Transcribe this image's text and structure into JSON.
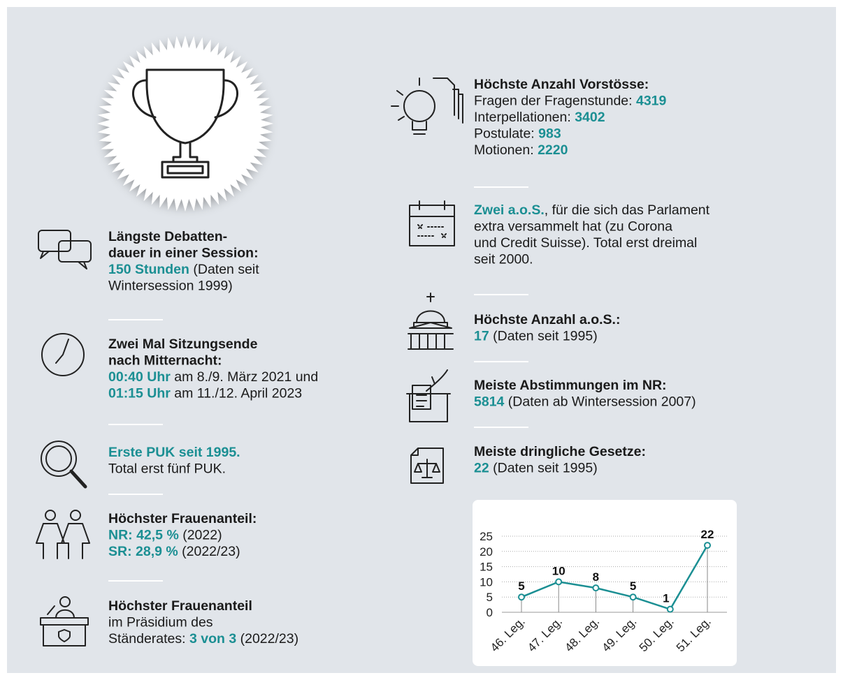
{
  "left": [
    {
      "lines": [
        [
          {
            "text": "Längste Debatten-",
            "style": "bold"
          }
        ],
        [
          {
            "text": "dauer in einer Session:",
            "style": "bold"
          }
        ],
        [
          {
            "text": "150 Stunden",
            "style": "teal"
          },
          {
            "text": " (Daten seit",
            "style": "plain"
          }
        ],
        [
          {
            "text": "Wintersession 1999)",
            "style": "plain"
          }
        ]
      ]
    },
    {
      "lines": [
        [
          {
            "text": "Zwei Mal Sitzungsende",
            "style": "bold"
          }
        ],
        [
          {
            "text": "nach Mitternacht:",
            "style": "bold"
          }
        ],
        [
          {
            "text": "00:40 Uhr",
            "style": "teal"
          },
          {
            "text": " am 8./9. März 2021 und",
            "style": "plain"
          }
        ],
        [
          {
            "text": "01:15 Uhr",
            "style": "teal"
          },
          {
            "text": " am 11./12. April 2023",
            "style": "plain"
          }
        ]
      ]
    },
    {
      "lines": [
        [
          {
            "text": "Erste PUK seit 1995.",
            "style": "teal"
          }
        ],
        [
          {
            "text": "Total erst fünf PUK.",
            "style": "plain"
          }
        ]
      ]
    },
    {
      "lines": [
        [
          {
            "text": "Höchster Frauenanteil:",
            "style": "bold"
          }
        ],
        [
          {
            "text": "NR: 42,5 %",
            "style": "teal"
          },
          {
            "text": " (2022)",
            "style": "plain"
          }
        ],
        [
          {
            "text": "SR: 28,9 %",
            "style": "teal"
          },
          {
            "text": " (2022/23)",
            "style": "plain"
          }
        ]
      ]
    },
    {
      "lines": [
        [
          {
            "text": "Höchster Frauenanteil",
            "style": "bold"
          }
        ],
        [
          {
            "text": "im Präsidium des",
            "style": "plain"
          }
        ],
        [
          {
            "text": "Ständerates: ",
            "style": "plain"
          },
          {
            "text": "3 von 3",
            "style": "teal"
          },
          {
            "text": " (2022/23)",
            "style": "plain"
          }
        ]
      ]
    }
  ],
  "right": [
    {
      "lines": [
        [
          {
            "text": "Höchste Anzahl Vorstösse:",
            "style": "bold"
          }
        ],
        [
          {
            "text": "Fragen der Fragenstunde: ",
            "style": "plain"
          },
          {
            "text": "4319",
            "style": "teal"
          }
        ],
        [
          {
            "text": "Interpellationen: ",
            "style": "plain"
          },
          {
            "text": "3402",
            "style": "teal"
          }
        ],
        [
          {
            "text": "Postulate: ",
            "style": "plain"
          },
          {
            "text": "983",
            "style": "teal"
          }
        ],
        [
          {
            "text": "Motionen: ",
            "style": "plain"
          },
          {
            "text": "2220",
            "style": "teal"
          }
        ]
      ]
    },
    {
      "lines": [
        [
          {
            "text": "Zwei a.o.S.",
            "style": "teal"
          },
          {
            "text": ", für die sich das Parlament",
            "style": "plain"
          }
        ],
        [
          {
            "text": "extra versammelt hat (zu Corona",
            "style": "plain"
          }
        ],
        [
          {
            "text": "und Credit Suisse). Total erst dreimal",
            "style": "plain"
          }
        ],
        [
          {
            "text": "seit 2000.",
            "style": "plain"
          }
        ]
      ]
    },
    {
      "lines": [
        [
          {
            "text": "Höchste Anzahl a.o.S.:",
            "style": "bold"
          }
        ],
        [
          {
            "text": "17",
            "style": "teal"
          },
          {
            "text": " (Daten seit 1995)",
            "style": "plain"
          }
        ]
      ]
    },
    {
      "lines": [
        [
          {
            "text": "Meiste Abstimmungen im NR:",
            "style": "bold"
          }
        ],
        [
          {
            "text": "5814",
            "style": "teal"
          },
          {
            "text": " (Daten ab Wintersession 2007)",
            "style": "plain"
          }
        ]
      ]
    },
    {
      "lines": [
        [
          {
            "text": "Meiste dringliche Gesetze:",
            "style": "bold"
          }
        ],
        [
          {
            "text": "22",
            "style": "teal"
          },
          {
            "text": " (Daten seit 1995)",
            "style": "plain"
          }
        ]
      ]
    }
  ],
  "chart_data": {
    "type": "line",
    "categories": [
      "46. Leg.",
      "47. Leg.",
      "48. Leg.",
      "49. Leg.",
      "50. Leg.",
      "51. Leg."
    ],
    "values": [
      5,
      10,
      8,
      5,
      1,
      22
    ],
    "color": "#1b8f93",
    "ylim": [
      0,
      25
    ],
    "yticks": [
      0,
      5,
      10,
      15,
      20,
      25
    ],
    "grid": true
  }
}
